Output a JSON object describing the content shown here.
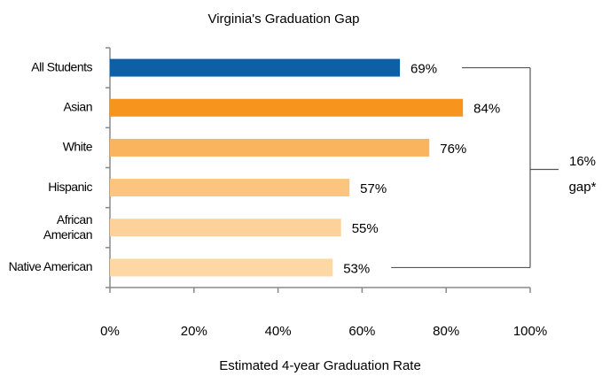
{
  "chart_data": {
    "type": "bar",
    "orientation": "horizontal",
    "title": "Virginia's Graduation Gap",
    "categories": [
      "All Students",
      "Asian",
      "White",
      "Hispanic",
      "African American",
      "Native American"
    ],
    "values": [
      69,
      84,
      76,
      57,
      55,
      53
    ],
    "value_labels": [
      "69%",
      "84%",
      "76%",
      "57%",
      "55%",
      "53%"
    ],
    "colors": [
      "#0d5fa6",
      "#f7941d",
      "#fbb45e",
      "#fcc47f",
      "#fdd29a",
      "#fdd8a5"
    ],
    "xlim": [
      0,
      100
    ],
    "xticks": [
      {
        "value": 0,
        "label": "0%"
      },
      {
        "value": 20,
        "label": "20%"
      },
      {
        "value": 40,
        "label": "40%"
      },
      {
        "value": 60,
        "label": "60%"
      },
      {
        "value": 80,
        "label": "80%"
      },
      {
        "value": 100,
        "label": "100%"
      }
    ],
    "xlabel": "Estimated 4-year Graduation Rate",
    "annotation": [
      "16%",
      "gap*"
    ],
    "grid": false
  }
}
